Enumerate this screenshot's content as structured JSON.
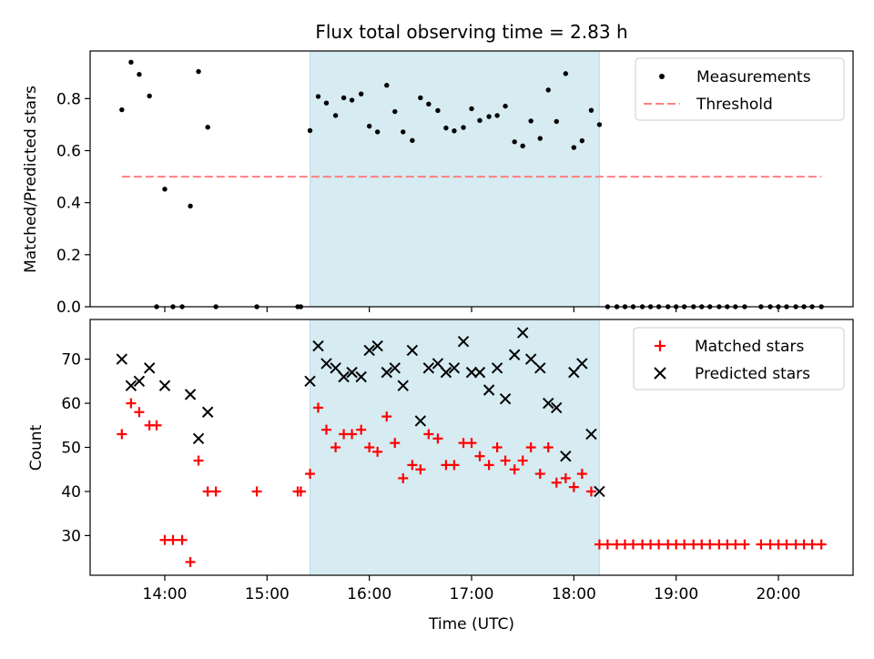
{
  "figure": {
    "title": "Flux total observing time = 2.83 h",
    "xlabel": "Time (UTC)",
    "x_tick_labels": [
      "14:00",
      "15:00",
      "16:00",
      "17:00",
      "18:00",
      "19:00",
      "20:00"
    ],
    "x_tick_values": [
      14,
      15,
      16,
      17,
      18,
      19,
      20
    ],
    "x_range": [
      13.27,
      20.73
    ],
    "shaded_span": [
      15.42,
      18.25
    ],
    "colors": {
      "shade": "#add8e6",
      "measure": "#000000",
      "threshold": "#ff7f7f",
      "matched": "#ff0000",
      "predicted": "#000000"
    }
  },
  "chart_data": [
    {
      "type": "scatter",
      "ylabel": "Matched/Predicted stars",
      "ylim": [
        0,
        0.983
      ],
      "y_tick_values": [
        0.0,
        0.2,
        0.4,
        0.6,
        0.8
      ],
      "y_tick_labels": [
        "0.0",
        "0.2",
        "0.4",
        "0.6",
        "0.8"
      ],
      "legend": {
        "placement": "top-right",
        "entries": [
          "Measurements",
          "Threshold"
        ]
      },
      "threshold": {
        "name": "Threshold",
        "y": 0.5,
        "x": [
          13.58,
          20.42
        ]
      },
      "series": [
        {
          "name": "Measurements",
          "x": [
            13.58,
            13.67,
            13.75,
            13.85,
            13.92,
            14.0,
            14.08,
            14.17,
            14.25,
            14.33,
            14.42,
            14.5,
            14.9,
            15.3,
            15.33,
            15.42,
            15.5,
            15.58,
            15.67,
            15.75,
            15.83,
            15.92,
            16.0,
            16.08,
            16.17,
            16.25,
            16.33,
            16.42,
            16.5,
            16.58,
            16.67,
            16.75,
            16.83,
            16.92,
            17.0,
            17.08,
            17.17,
            17.25,
            17.33,
            17.42,
            17.5,
            17.58,
            17.67,
            17.75,
            17.83,
            17.92,
            18.0,
            18.08,
            18.17,
            18.25,
            18.33,
            18.42,
            18.5,
            18.58,
            18.67,
            18.75,
            18.83,
            18.92,
            19.0,
            19.08,
            19.17,
            19.25,
            19.33,
            19.42,
            19.5,
            19.58,
            19.67,
            19.83,
            19.92,
            20.0,
            20.08,
            20.17,
            20.25,
            20.33,
            20.42
          ],
          "y": [
            0.757,
            0.94,
            0.893,
            0.81,
            0.0,
            0.452,
            0.0,
            0.0,
            0.387,
            0.904,
            0.69,
            0.0,
            0.0,
            0.0,
            0.0,
            0.677,
            0.808,
            0.783,
            0.735,
            0.803,
            0.794,
            0.818,
            0.694,
            0.672,
            0.851,
            0.75,
            0.672,
            0.639,
            0.803,
            0.779,
            0.754,
            0.687,
            0.676,
            0.689,
            0.761,
            0.716,
            0.731,
            0.735,
            0.771,
            0.634,
            0.618,
            0.714,
            0.647,
            0.833,
            0.712,
            0.896,
            0.612,
            0.638,
            0.755,
            0.7,
            0.0,
            0.0,
            0.0,
            0.0,
            0.0,
            0.0,
            0.0,
            0.0,
            0.0,
            0.0,
            0.0,
            0.0,
            0.0,
            0.0,
            0.0,
            0.0,
            0.0,
            0.0,
            0.0,
            0.0,
            0.0,
            0.0,
            0.0,
            0.0,
            0.0
          ]
        }
      ]
    },
    {
      "type": "scatter",
      "ylabel": "Count",
      "ylim": [
        21,
        79
      ],
      "y_tick_values": [
        30,
        40,
        50,
        60,
        70
      ],
      "y_tick_labels": [
        "30",
        "40",
        "50",
        "60",
        "70"
      ],
      "legend": {
        "placement": "top-right",
        "entries": [
          "Matched stars",
          "Predicted stars"
        ]
      },
      "series": [
        {
          "name": "Matched stars",
          "marker": "plus",
          "x": [
            13.58,
            13.67,
            13.75,
            13.85,
            13.92,
            14.0,
            14.08,
            14.17,
            14.25,
            14.33,
            14.42,
            14.5,
            14.9,
            15.3,
            15.33,
            15.42,
            15.5,
            15.58,
            15.67,
            15.75,
            15.83,
            15.92,
            16.0,
            16.08,
            16.17,
            16.25,
            16.33,
            16.42,
            16.5,
            16.58,
            16.67,
            16.75,
            16.83,
            16.92,
            17.0,
            17.08,
            17.17,
            17.25,
            17.33,
            17.42,
            17.5,
            17.58,
            17.67,
            17.75,
            17.83,
            17.92,
            18.0,
            18.08,
            18.17,
            18.25,
            18.33,
            18.42,
            18.5,
            18.58,
            18.67,
            18.75,
            18.83,
            18.92,
            19.0,
            19.08,
            19.17,
            19.25,
            19.33,
            19.42,
            19.5,
            19.58,
            19.67,
            19.83,
            19.92,
            20.0,
            20.08,
            20.17,
            20.25,
            20.33,
            20.42
          ],
          "y": [
            53,
            60,
            58,
            55,
            55,
            29,
            29,
            29,
            24,
            47,
            40,
            40,
            40,
            40,
            40,
            44,
            59,
            54,
            50,
            53,
            53,
            54,
            50,
            49,
            57,
            51,
            43,
            46,
            45,
            53,
            52,
            46,
            46,
            51,
            51,
            48,
            46,
            50,
            47,
            45,
            47,
            50,
            44,
            50,
            42,
            43,
            41,
            44,
            40,
            28,
            28,
            28,
            28,
            28,
            28,
            28,
            28,
            28,
            28,
            28,
            28,
            28,
            28,
            28,
            28,
            28,
            28,
            28,
            28,
            28,
            28,
            28,
            28,
            28,
            28
          ]
        },
        {
          "name": "Predicted stars",
          "marker": "x",
          "x": [
            13.58,
            13.67,
            13.75,
            13.85,
            14.0,
            14.25,
            14.33,
            14.42,
            15.42,
            15.5,
            15.58,
            15.67,
            15.75,
            15.83,
            15.92,
            16.0,
            16.08,
            16.17,
            16.25,
            16.33,
            16.42,
            16.5,
            16.58,
            16.67,
            16.75,
            16.83,
            16.92,
            17.0,
            17.08,
            17.17,
            17.25,
            17.33,
            17.42,
            17.5,
            17.58,
            17.67,
            17.75,
            17.83,
            17.92,
            18.0,
            18.08,
            18.17,
            18.25
          ],
          "y": [
            70,
            64,
            65,
            68,
            64,
            62,
            52,
            58,
            65,
            73,
            69,
            68,
            66,
            67,
            66,
            72,
            73,
            67,
            68,
            64,
            72,
            56,
            68,
            69,
            67,
            68,
            74,
            67,
            67,
            63,
            68,
            61,
            71,
            76,
            70,
            68,
            60,
            59,
            48,
            67,
            69,
            53,
            40
          ]
        }
      ]
    }
  ]
}
